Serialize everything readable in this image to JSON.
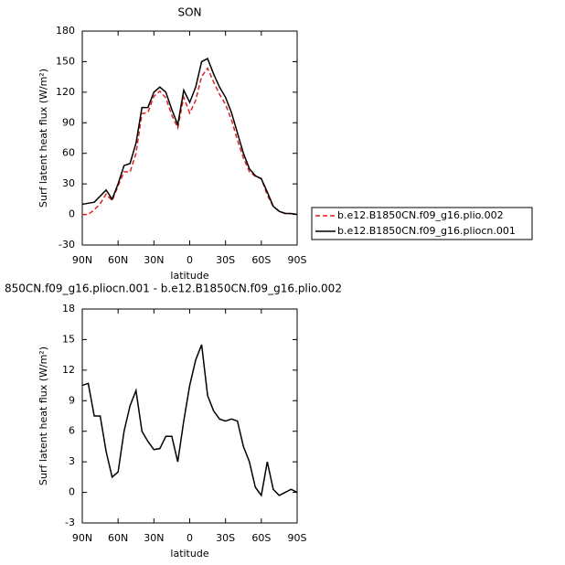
{
  "chart_data": [
    {
      "type": "line",
      "title": "SON",
      "xlabel": "latitude",
      "ylabel": "Surf latent heat flux (W/m²)",
      "x": [
        90,
        85,
        80,
        75,
        70,
        65,
        60,
        55,
        50,
        45,
        40,
        35,
        30,
        25,
        20,
        15,
        10,
        5,
        0,
        -5,
        -10,
        -15,
        -20,
        -25,
        -30,
        -35,
        -40,
        -45,
        -50,
        -55,
        -60,
        -65,
        -70,
        -75,
        -80,
        -85,
        -90
      ],
      "series": [
        {
          "name": "b.e12.B1850CN.f09_g16.plio.002",
          "color": "#e02020",
          "linestyle": "dashed",
          "values": [
            0,
            0,
            4.5,
            10.5,
            20,
            13.5,
            28,
            42,
            41.5,
            60,
            99,
            100,
            116,
            121,
            114.5,
            97.5,
            85,
            115,
            99.5,
            112,
            135.5,
            143.5,
            130,
            118,
            108,
            93,
            73,
            55.5,
            42,
            37.5,
            35.3,
            19,
            7.7,
            3.3,
            1,
            0.7,
            0
          ]
        },
        {
          "name": "b.e12.B1850CN.f09_g16.pliocn.001",
          "color": "#000000",
          "linestyle": "solid",
          "values": [
            10,
            11,
            12,
            18,
            24,
            15,
            30,
            48,
            50,
            70,
            105,
            105,
            120,
            125,
            120,
            103,
            88,
            122,
            110,
            125,
            150,
            153,
            138,
            125,
            115,
            100,
            80,
            60,
            45,
            38,
            35,
            22,
            8,
            3,
            1,
            1,
            0
          ]
        }
      ],
      "xlim": [
        90,
        -90
      ],
      "xticks": [
        {
          "value": 90,
          "label": "90N"
        },
        {
          "value": 60,
          "label": "60N"
        },
        {
          "value": 30,
          "label": "30N"
        },
        0,
        {
          "value": -30,
          "label": "30S"
        },
        {
          "value": -60,
          "label": "60S"
        },
        {
          "value": -90,
          "label": "90S"
        }
      ],
      "ylim": [
        -30,
        180
      ],
      "yticks": [
        -30,
        0,
        30,
        60,
        90,
        120,
        150,
        180
      ],
      "legend": "right"
    },
    {
      "type": "line",
      "title": "850CN.f09_g16.pliocn.001 - b.e12.B1850CN.f09_g16.plio.002",
      "xlabel": "latitude",
      "ylabel": "Surf latent heat flux (W/m²)",
      "x": [
        90,
        85,
        80,
        75,
        70,
        65,
        60,
        55,
        50,
        45,
        40,
        35,
        30,
        25,
        20,
        15,
        10,
        5,
        0,
        -5,
        -10,
        -15,
        -20,
        -25,
        -30,
        -35,
        -40,
        -45,
        -50,
        -55,
        -60,
        -65,
        -70,
        -75,
        -80,
        -85,
        -90
      ],
      "series": [
        {
          "color": "#000000",
          "linestyle": "solid",
          "values": [
            10.5,
            10.7,
            7.5,
            7.5,
            4,
            1.5,
            2,
            6,
            8.5,
            10,
            6,
            5,
            4.2,
            4.3,
            5.5,
            5.5,
            3,
            7,
            10.5,
            13,
            14.5,
            9.5,
            8,
            7.2,
            7,
            7.2,
            7,
            4.5,
            3,
            0.5,
            -0.3,
            3,
            0.3,
            -0.3,
            0,
            0.3,
            0
          ]
        }
      ],
      "xlim": [
        90,
        -90
      ],
      "xticks": [
        {
          "value": 90,
          "label": "90N"
        },
        {
          "value": 60,
          "label": "60N"
        },
        {
          "value": 30,
          "label": "30N"
        },
        0,
        {
          "value": -30,
          "label": "30S"
        },
        {
          "value": -60,
          "label": "60S"
        },
        {
          "value": -90,
          "label": "90S"
        }
      ],
      "ylim": [
        -3,
        18
      ],
      "yticks": [
        -3,
        0,
        3,
        6,
        9,
        12,
        15,
        18
      ]
    }
  ]
}
